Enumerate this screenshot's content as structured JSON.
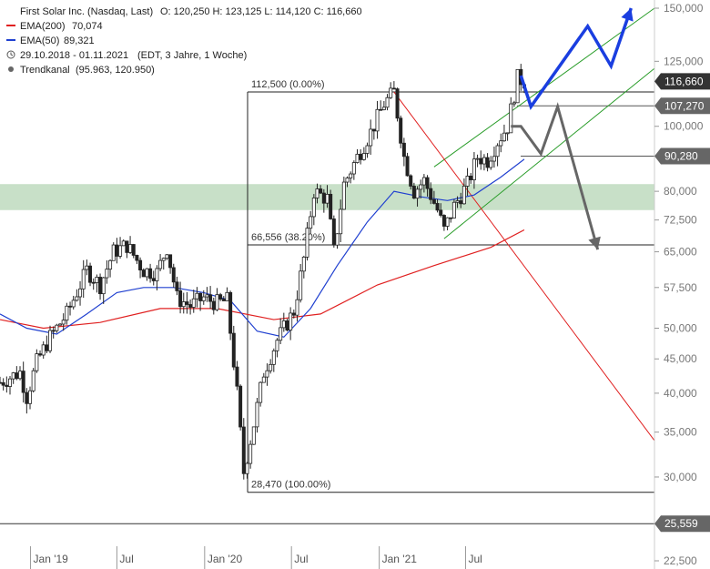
{
  "header": {
    "title": "First Solar Inc. (Nasdaq, Last)",
    "ohlc": "O: 120,250  H: 123,125  L: 114,120  C: 116,660",
    "legend": [
      {
        "label": "EMA(200)",
        "value": "70,074",
        "color": "#e02020"
      },
      {
        "label": "EMA(50)",
        "value": "89,321",
        "color": "#2040d0"
      }
    ],
    "range": "29.10.2018 - 01.11.2021",
    "range_note": "(EDT, 3 Jahre, 1 Woche)",
    "channel": "Trendkanal",
    "channel_value": "(95.963, 120.950)"
  },
  "chart_data": {
    "type": "candlestick",
    "scale": "log",
    "ylim": [
      22500,
      150000
    ],
    "y_ticks": [
      {
        "value": 150000,
        "label": "150,000"
      },
      {
        "value": 125000,
        "label": "125,000"
      },
      {
        "value": 100000,
        "label": "100,000"
      },
      {
        "value": 80000,
        "label": "80,000"
      },
      {
        "value": 72500,
        "label": "72,500"
      },
      {
        "value": 65000,
        "label": "65,000"
      },
      {
        "value": 57500,
        "label": "57,500"
      },
      {
        "value": 50000,
        "label": "50,000"
      },
      {
        "value": 45000,
        "label": "45,000"
      },
      {
        "value": 40000,
        "label": "40,000"
      },
      {
        "value": 35000,
        "label": "35,000"
      },
      {
        "value": 30000,
        "label": "30,000"
      },
      {
        "value": 22500,
        "label": "22,500"
      }
    ],
    "x_ticks": [
      {
        "date": "2019-01",
        "label": "Jan '19"
      },
      {
        "date": "2019-07",
        "label": "Jul"
      },
      {
        "date": "2020-01",
        "label": "Jan '20"
      },
      {
        "date": "2020-07",
        "label": "Jul"
      },
      {
        "date": "2021-01",
        "label": "Jan '21"
      },
      {
        "date": "2021-07",
        "label": "Jul"
      }
    ],
    "x_range": [
      "2018-10-29",
      "2022-08-01"
    ],
    "price_boxes": [
      {
        "value": 116660,
        "label": "116,660",
        "color": "#333333"
      },
      {
        "value": 107270,
        "label": "107,270",
        "color": "#666666"
      },
      {
        "value": 90280,
        "label": "90,280",
        "color": "#666666"
      },
      {
        "value": 25559,
        "label": "25,559",
        "color": "#666666"
      }
    ],
    "fib_levels": [
      {
        "value": 112500,
        "label": "112,500 (0.00%)"
      },
      {
        "value": 66556,
        "label": "66,556 (38.20%)"
      },
      {
        "value": 28470,
        "label": "28,470 (100.00%)"
      }
    ],
    "support_zone": [
      75000,
      82000
    ],
    "weekly_closes": [
      {
        "date": "2018-10-29",
        "close": 41500
      },
      {
        "date": "2018-12-10",
        "close": 43000
      },
      {
        "date": "2018-12-24",
        "close": 39500
      },
      {
        "date": "2019-01-14",
        "close": 44500
      },
      {
        "date": "2019-02-11",
        "close": 48500
      },
      {
        "date": "2019-03-18",
        "close": 52500
      },
      {
        "date": "2019-04-29",
        "close": 61000
      },
      {
        "date": "2019-05-27",
        "close": 58000
      },
      {
        "date": "2019-06-24",
        "close": 65000
      },
      {
        "date": "2019-07-22",
        "close": 66500
      },
      {
        "date": "2019-08-26",
        "close": 61000
      },
      {
        "date": "2019-09-23",
        "close": 60500
      },
      {
        "date": "2019-10-14",
        "close": 66000
      },
      {
        "date": "2019-11-04",
        "close": 55500
      },
      {
        "date": "2019-12-02",
        "close": 54000
      },
      {
        "date": "2019-12-30",
        "close": 55500
      },
      {
        "date": "2020-01-27",
        "close": 54500
      },
      {
        "date": "2020-02-17",
        "close": 55000
      },
      {
        "date": "2020-03-09",
        "close": 40000
      },
      {
        "date": "2020-03-23",
        "close": 30500
      },
      {
        "date": "2020-04-13",
        "close": 36000
      },
      {
        "date": "2020-05-04",
        "close": 43000
      },
      {
        "date": "2020-06-01",
        "close": 48000
      },
      {
        "date": "2020-07-06",
        "close": 53000
      },
      {
        "date": "2020-07-27",
        "close": 63500
      },
      {
        "date": "2020-08-17",
        "close": 80000
      },
      {
        "date": "2020-09-14",
        "close": 78000
      },
      {
        "date": "2020-09-28",
        "close": 65000
      },
      {
        "date": "2020-10-19",
        "close": 82000
      },
      {
        "date": "2020-11-16",
        "close": 90000
      },
      {
        "date": "2020-12-14",
        "close": 98000
      },
      {
        "date": "2021-01-11",
        "close": 108000
      },
      {
        "date": "2021-02-01",
        "close": 112500
      },
      {
        "date": "2021-02-22",
        "close": 90000
      },
      {
        "date": "2021-03-15",
        "close": 80000
      },
      {
        "date": "2021-04-05",
        "close": 83000
      },
      {
        "date": "2021-05-03",
        "close": 75000
      },
      {
        "date": "2021-05-17",
        "close": 70000
      },
      {
        "date": "2021-06-07",
        "close": 76000
      },
      {
        "date": "2021-07-05",
        "close": 82000
      },
      {
        "date": "2021-07-26",
        "close": 90000
      },
      {
        "date": "2021-08-16",
        "close": 89000
      },
      {
        "date": "2021-09-06",
        "close": 95000
      },
      {
        "date": "2021-09-27",
        "close": 100000
      },
      {
        "date": "2021-10-18",
        "close": 118000
      },
      {
        "date": "2021-11-01",
        "close": 116660
      }
    ],
    "ema50": [
      {
        "date": "2018-10-29",
        "value": 52500
      },
      {
        "date": "2018-12-24",
        "value": 50000
      },
      {
        "date": "2019-02-25",
        "value": 49000
      },
      {
        "date": "2019-04-29",
        "value": 52500
      },
      {
        "date": "2019-07-01",
        "value": 56500
      },
      {
        "date": "2019-08-26",
        "value": 57500
      },
      {
        "date": "2019-10-28",
        "value": 57500
      },
      {
        "date": "2019-12-30",
        "value": 56500
      },
      {
        "date": "2020-02-24",
        "value": 55000
      },
      {
        "date": "2020-04-20",
        "value": 49500
      },
      {
        "date": "2020-06-15",
        "value": 48500
      },
      {
        "date": "2020-08-10",
        "value": 53500
      },
      {
        "date": "2020-10-05",
        "value": 62000
      },
      {
        "date": "2020-12-07",
        "value": 72000
      },
      {
        "date": "2021-02-01",
        "value": 80000
      },
      {
        "date": "2021-03-29",
        "value": 78500
      },
      {
        "date": "2021-05-24",
        "value": 77500
      },
      {
        "date": "2021-07-19",
        "value": 79000
      },
      {
        "date": "2021-09-13",
        "value": 84000
      },
      {
        "date": "2021-11-01",
        "value": 89321
      }
    ],
    "ema200": [
      {
        "date": "2018-10-29",
        "value": 51500
      },
      {
        "date": "2019-01-28",
        "value": 50000
      },
      {
        "date": "2019-05-27",
        "value": 51000
      },
      {
        "date": "2019-09-30",
        "value": 53500
      },
      {
        "date": "2020-01-27",
        "value": 53500
      },
      {
        "date": "2020-05-25",
        "value": 51500
      },
      {
        "date": "2020-08-31",
        "value": 52500
      },
      {
        "date": "2020-12-28",
        "value": 58000
      },
      {
        "date": "2021-04-26",
        "value": 62000
      },
      {
        "date": "2021-08-23",
        "value": 66000
      },
      {
        "date": "2021-11-01",
        "value": 70074
      }
    ],
    "channel_upper": [
      {
        "date": "2021-04-26",
        "value": 87000
      },
      {
        "date": "2022-08-01",
        "value": 150000
      }
    ],
    "channel_lower": [
      {
        "date": "2021-05-17",
        "value": 68000
      },
      {
        "date": "2022-08-01",
        "value": 122000
      }
    ],
    "downtrend_line": [
      {
        "date": "2021-02-01",
        "value": 112500
      },
      {
        "date": "2022-08-01",
        "value": 34000
      }
    ],
    "scenario_blue": [
      {
        "date": "2021-10-25",
        "value": 119000
      },
      {
        "date": "2021-11-15",
        "value": 107000
      },
      {
        "date": "2022-03-14",
        "value": 141000
      },
      {
        "date": "2022-05-02",
        "value": 123000
      },
      {
        "date": "2022-06-13",
        "value": 150000
      }
    ],
    "scenario_gray": [
      {
        "date": "2021-10-04",
        "value": 100000
      },
      {
        "date": "2021-10-25",
        "value": 100000
      },
      {
        "date": "2021-12-06",
        "value": 91000
      },
      {
        "date": "2022-01-10",
        "value": 107000
      },
      {
        "date": "2022-04-04",
        "value": 65500
      }
    ]
  }
}
